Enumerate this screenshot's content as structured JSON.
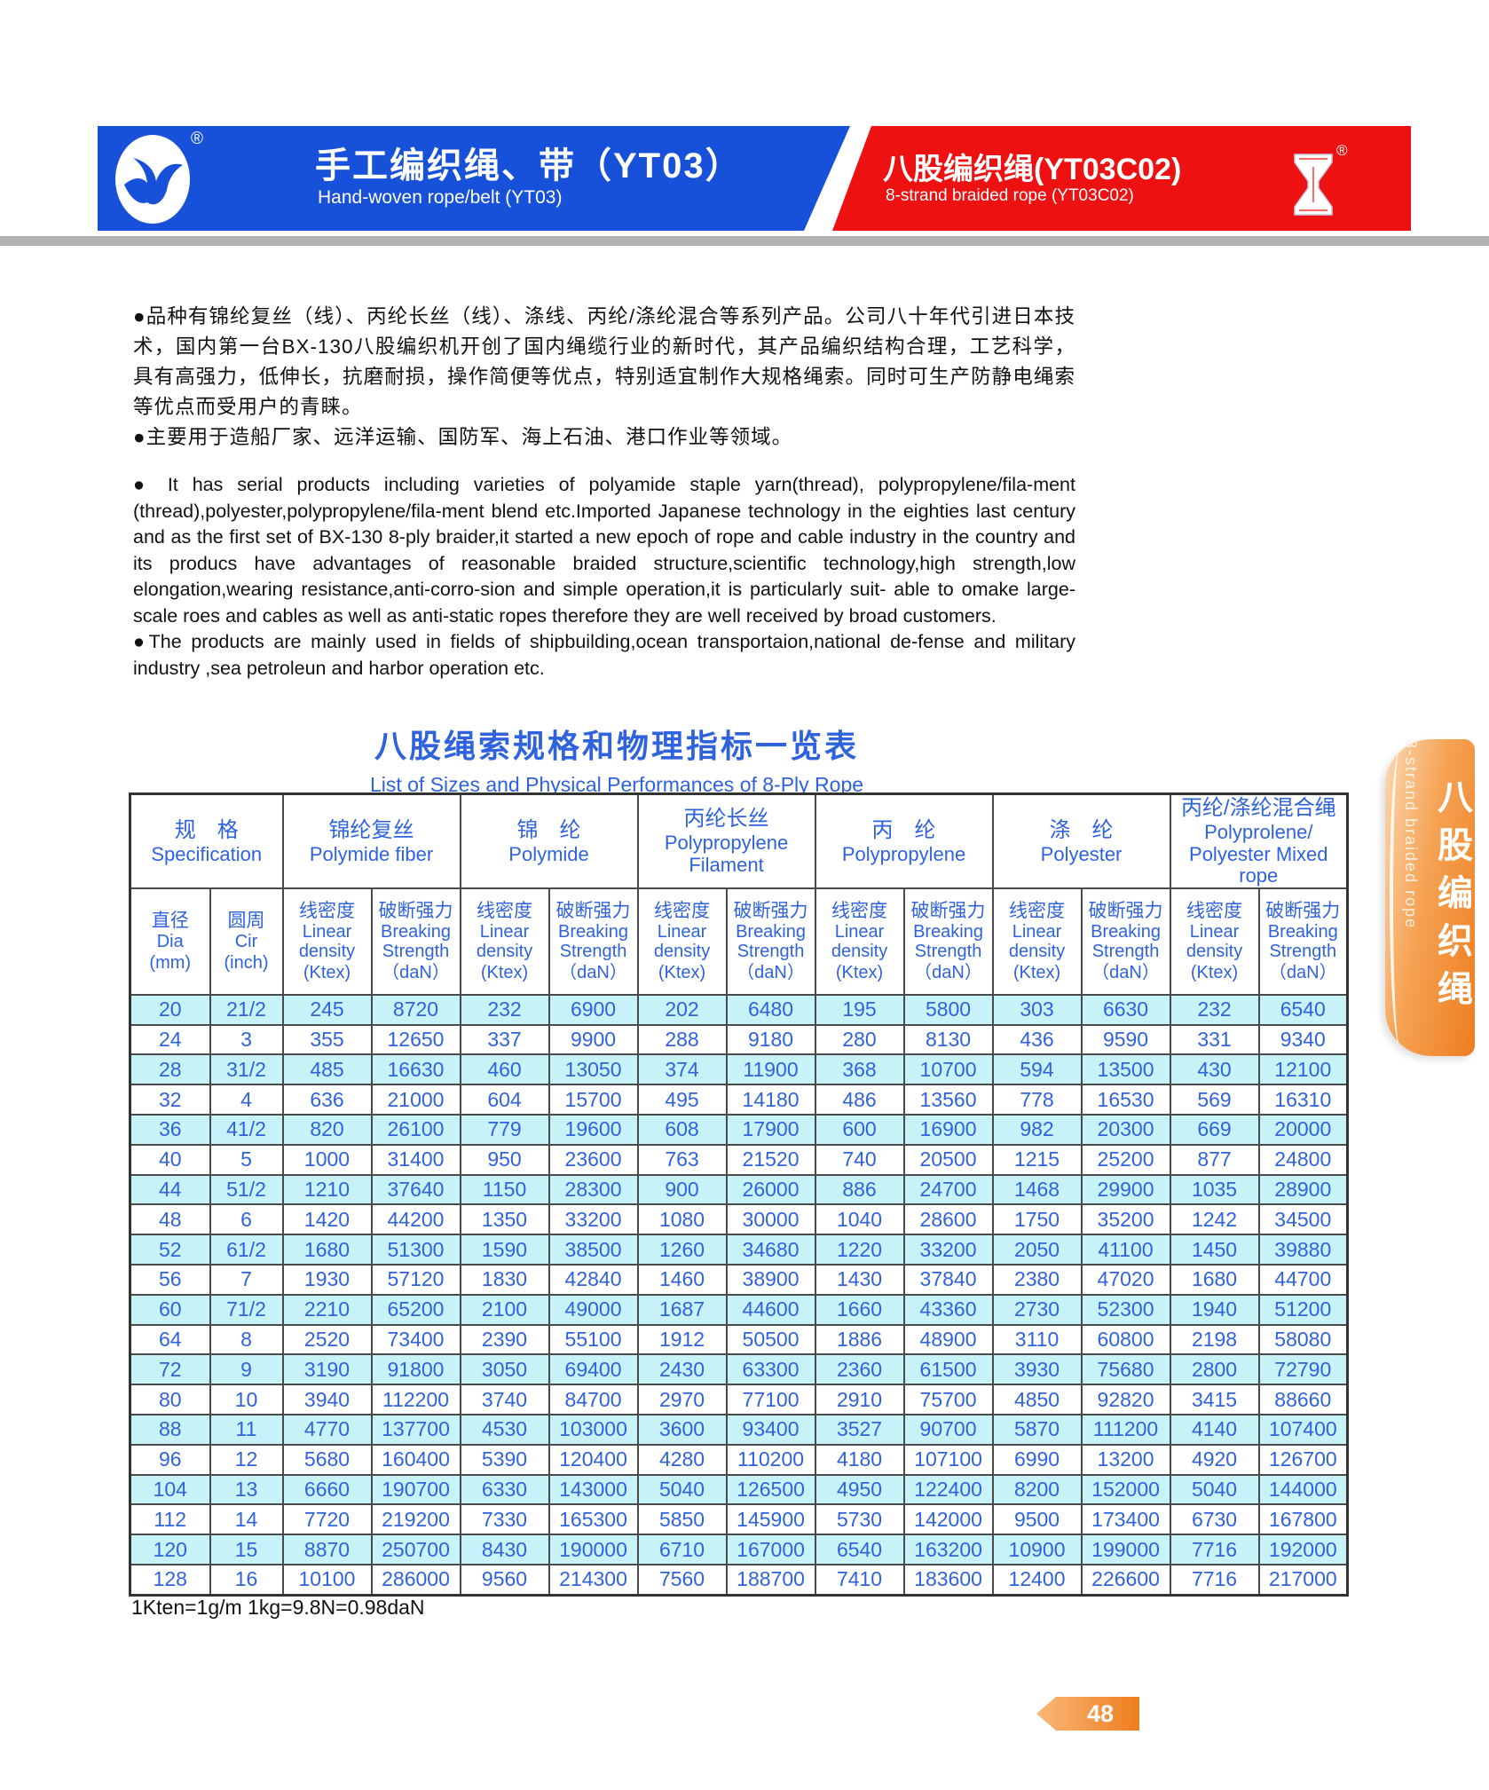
{
  "header": {
    "left_band": {
      "title_zh": "手工编织绳、带（YT03）",
      "title_en": "Hand-woven rope/belt (YT03)",
      "logo_reg_mark": "®"
    },
    "right_band": {
      "title_zh": "八股编织绳(YT03C02)",
      "title_en": "8-strand braided rope (YT03C02)",
      "logo_reg_mark": "®"
    }
  },
  "colors": {
    "band_blue": "#1751d9",
    "band_red": "#ee1111",
    "table_text_blue": "#2f63dd",
    "row_cyan": "#c7f2f7",
    "tab_orange": "#ee7d1f",
    "gray_bar": "#b1b1b1"
  },
  "intro": {
    "zh_para1": "●品种有锦纶复丝（线）、丙纶长丝（线）、涤线、丙纶/涤纶混合等系列产品。公司八十年代引进日本技术，国内第一台BX-130八股编织机开创了国内绳缆行业的新时代，其产品编织结构合理，工艺科学，具有高强力，低伸长，抗磨耐损，操作简便等优点，特别适宜制作大规格绳索。同时可生产防静电绳索等优点而受用户的青睐。",
    "zh_para2": "●主要用于造船厂家、远洋运输、国防军、海上石油、港口作业等领域。",
    "en_para1": "● It has serial products including varieties of polyamide staple yarn(thread), polypropylene/fila-ment (thread),polyester,polypropylene/fila-ment blend etc.Imported Japanese technology in the eighties last century and as the first set of BX-130 8-ply braider,it started a new epoch of rope and cable industry in the country and its producs have advantages of reasonable braided structure,scientific technology,high strength,low elongation,wearing resistance,anti-corro-sion and simple operation,it is particularly suit- able to omake large-scale roes and cables as well as anti-static ropes therefore they are well received by broad customers.",
    "en_para2": "●The products are mainly used in fields of shipbuilding,ocean transportaion,national de-fense and military industry ,sea petroleun and harbor operation etc."
  },
  "table": {
    "title_zh": "八股绳索规格和物理指标一览表",
    "title_en": "List of Sizes and Physical Performances of 8-Ply Rope",
    "spec_group": {
      "zh": "规　格",
      "en": "Specification"
    },
    "groups": [
      {
        "zh": "锦纶复丝",
        "en": "Polymide fiber"
      },
      {
        "zh": "锦　纶",
        "en": "Polymide"
      },
      {
        "zh": "丙纶长丝",
        "en": "Polypropylene Filament"
      },
      {
        "zh": "丙　纶",
        "en": "Polypropylene"
      },
      {
        "zh": "涤　纶",
        "en": "Polyester"
      },
      {
        "zh": "丙纶/涤纶混合绳",
        "en": "Polyprolene/ Polyester Mixed rope"
      }
    ],
    "sub_headers": {
      "dia": {
        "zh": "直径",
        "en": "Dia",
        "unit": "(mm)"
      },
      "cir": {
        "zh": "圆周",
        "en": "Cir",
        "unit": "(inch)"
      },
      "linear_density": {
        "zh": "线密度",
        "en": "Linear density",
        "unit": "(Ktex)"
      },
      "breaking_strength": {
        "zh": "破断强力",
        "en": "Breaking Strength",
        "unit": "（daN）"
      }
    },
    "rows": [
      [
        "20",
        "21/2",
        "245",
        "8720",
        "232",
        "6900",
        "202",
        "6480",
        "195",
        "5800",
        "303",
        "6630",
        "232",
        "6540"
      ],
      [
        "24",
        "3",
        "355",
        "12650",
        "337",
        "9900",
        "288",
        "9180",
        "280",
        "8130",
        "436",
        "9590",
        "331",
        "9340"
      ],
      [
        "28",
        "31/2",
        "485",
        "16630",
        "460",
        "13050",
        "374",
        "11900",
        "368",
        "10700",
        "594",
        "13500",
        "430",
        "12100"
      ],
      [
        "32",
        "4",
        "636",
        "21000",
        "604",
        "15700",
        "495",
        "14180",
        "486",
        "13560",
        "778",
        "16530",
        "569",
        "16310"
      ],
      [
        "36",
        "41/2",
        "820",
        "26100",
        "779",
        "19600",
        "608",
        "17900",
        "600",
        "16900",
        "982",
        "20300",
        "669",
        "20000"
      ],
      [
        "40",
        "5",
        "1000",
        "31400",
        "950",
        "23600",
        "763",
        "21520",
        "740",
        "20500",
        "1215",
        "25200",
        "877",
        "24800"
      ],
      [
        "44",
        "51/2",
        "1210",
        "37640",
        "1150",
        "28300",
        "900",
        "26000",
        "886",
        "24700",
        "1468",
        "29900",
        "1035",
        "28900"
      ],
      [
        "48",
        "6",
        "1420",
        "44200",
        "1350",
        "33200",
        "1080",
        "30000",
        "1040",
        "28600",
        "1750",
        "35200",
        "1242",
        "34500"
      ],
      [
        "52",
        "61/2",
        "1680",
        "51300",
        "1590",
        "38500",
        "1260",
        "34680",
        "1220",
        "33200",
        "2050",
        "41100",
        "1450",
        "39880"
      ],
      [
        "56",
        "7",
        "1930",
        "57120",
        "1830",
        "42840",
        "1460",
        "38900",
        "1430",
        "37840",
        "2380",
        "47020",
        "1680",
        "44700"
      ],
      [
        "60",
        "71/2",
        "2210",
        "65200",
        "2100",
        "49000",
        "1687",
        "44600",
        "1660",
        "43360",
        "2730",
        "52300",
        "1940",
        "51200"
      ],
      [
        "64",
        "8",
        "2520",
        "73400",
        "2390",
        "55100",
        "1912",
        "50500",
        "1886",
        "48900",
        "3110",
        "60800",
        "2198",
        "58080"
      ],
      [
        "72",
        "9",
        "3190",
        "91800",
        "3050",
        "69400",
        "2430",
        "63300",
        "2360",
        "61500",
        "3930",
        "75680",
        "2800",
        "72790"
      ],
      [
        "80",
        "10",
        "3940",
        "112200",
        "3740",
        "84700",
        "2970",
        "77100",
        "2910",
        "75700",
        "4850",
        "92820",
        "3415",
        "88660"
      ],
      [
        "88",
        "11",
        "4770",
        "137700",
        "4530",
        "103000",
        "3600",
        "93400",
        "3527",
        "90700",
        "5870",
        "111200",
        "4140",
        "107400"
      ],
      [
        "96",
        "12",
        "5680",
        "160400",
        "5390",
        "120400",
        "4280",
        "110200",
        "4180",
        "107100",
        "6990",
        "13200",
        "4920",
        "126700"
      ],
      [
        "104",
        "13",
        "6660",
        "190700",
        "6330",
        "143000",
        "5040",
        "126500",
        "4950",
        "122400",
        "8200",
        "152000",
        "5040",
        "144000"
      ],
      [
        "112",
        "14",
        "7720",
        "219200",
        "7330",
        "165300",
        "5850",
        "145900",
        "5730",
        "142000",
        "9500",
        "173400",
        "6730",
        "167800"
      ],
      [
        "120",
        "15",
        "8870",
        "250700",
        "8430",
        "190000",
        "6710",
        "167000",
        "6540",
        "163200",
        "10900",
        "199000",
        "7716",
        "192000"
      ],
      [
        "128",
        "16",
        "10100",
        "286000",
        "9560",
        "214300",
        "7560",
        "188700",
        "7410",
        "183600",
        "12400",
        "226600",
        "7716",
        "217000"
      ]
    ],
    "footnote": "1Kten=1g/m  1kg=9.8N=0.98daN"
  },
  "side_tab": {
    "zh": "八股编织绳",
    "en": "8-strand braided rope"
  },
  "page": {
    "number": "48"
  }
}
